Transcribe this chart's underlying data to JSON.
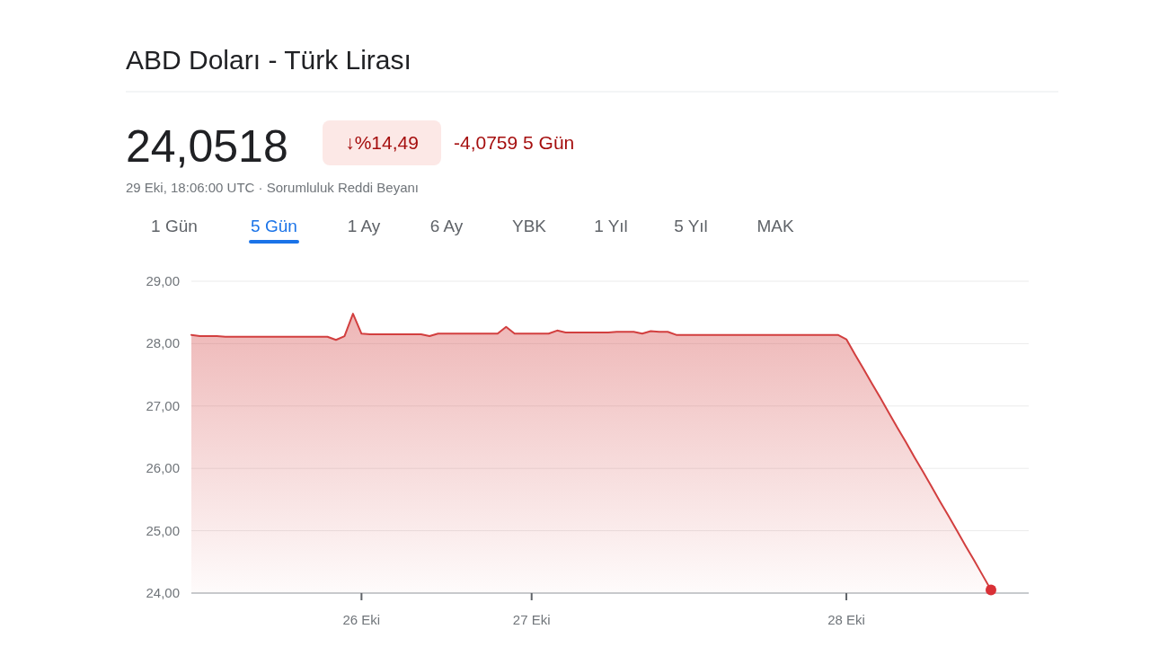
{
  "chart_data": {
    "type": "area",
    "title": "ABD Doları - Türk Lirası",
    "annotations": [
      "24,0518",
      "↓%14,49",
      "-4,0759 5 Gün",
      "29 Eki, 18:06:00 UTC · Sorumluluk Reddi Beyanı",
      "1 Gün",
      "5 Gün",
      "1 Ay",
      "6 Ay",
      "YBK",
      "1 Yıl",
      "5 Yıl",
      "MAK"
    ],
    "categories": [
      null,
      null,
      null,
      null,
      null,
      null,
      null,
      null,
      null,
      null,
      null,
      null,
      null,
      null,
      null,
      null,
      null,
      null,
      null,
      null,
      "26 Eki",
      null,
      null,
      null,
      null,
      null,
      null,
      null,
      null,
      null,
      null,
      null,
      null,
      null,
      null,
      null,
      null,
      null,
      null,
      null,
      "27 Eki",
      null,
      null,
      null,
      null,
      null,
      null,
      null,
      null,
      null,
      null,
      null,
      null,
      null,
      null,
      null,
      null,
      null,
      null,
      null,
      null,
      null,
      null,
      null,
      null,
      null,
      null,
      null,
      null,
      null,
      null,
      null,
      null,
      null,
      null,
      null,
      null,
      "28 Eki",
      null,
      null,
      null,
      null,
      null,
      null,
      null,
      null,
      null,
      null,
      null,
      null,
      null,
      null,
      null,
      null,
      null
    ],
    "ylim": [
      24,
      29
    ],
    "yticks": [
      {
        "value": 24,
        "label": "24,00"
      },
      {
        "value": 25,
        "label": "25,00"
      },
      {
        "value": 26,
        "label": "26,00"
      },
      {
        "value": 27,
        "label": "27,00"
      },
      {
        "value": 28,
        "label": "28,00"
      },
      {
        "value": 29,
        "label": "29,00"
      }
    ],
    "grid": "y",
    "marker": "none",
    "line_style": "solid",
    "series": [
      {
        "color": "#d23f3f",
        "values": [
          28.14,
          28.12,
          28.12,
          28.12,
          28.11,
          28.11,
          28.11,
          28.11,
          28.11,
          28.11,
          28.11,
          28.11,
          28.11,
          28.11,
          28.11,
          28.11,
          28.11,
          28.06,
          28.12,
          28.48,
          28.16,
          28.15,
          28.15,
          28.15,
          28.15,
          28.15,
          28.15,
          28.15,
          28.12,
          28.16,
          28.16,
          28.16,
          28.16,
          28.16,
          28.16,
          28.16,
          28.16,
          28.27,
          28.16,
          28.16,
          28.16,
          28.16,
          28.16,
          28.21,
          28.18,
          28.18,
          28.18,
          28.18,
          28.18,
          28.18,
          28.19,
          28.19,
          28.19,
          28.16,
          28.2,
          28.19,
          28.19,
          28.14,
          28.14,
          28.14,
          28.14,
          28.14,
          28.14,
          28.14,
          28.14,
          28.14,
          28.14,
          28.14,
          28.14,
          28.14,
          28.14,
          28.14,
          28.14,
          28.14,
          28.14,
          28.14,
          28.14,
          28.07,
          27.83,
          27.6,
          27.36,
          27.13,
          26.89,
          26.65,
          26.42,
          26.18,
          25.95,
          25.71,
          25.47,
          25.24,
          25.0,
          24.76,
          24.53,
          24.29,
          24.05
        ]
      },
      {
        "type": "scatter",
        "marker": "circle",
        "color": "#d93036",
        "values": [
          null,
          null,
          null,
          null,
          null,
          null,
          null,
          null,
          null,
          null,
          null,
          null,
          null,
          null,
          null,
          null,
          null,
          null,
          null,
          null,
          null,
          null,
          null,
          null,
          null,
          null,
          null,
          null,
          null,
          null,
          null,
          null,
          null,
          null,
          null,
          null,
          null,
          null,
          null,
          null,
          null,
          null,
          null,
          null,
          null,
          null,
          null,
          null,
          null,
          null,
          null,
          null,
          null,
          null,
          null,
          null,
          null,
          null,
          null,
          null,
          null,
          null,
          null,
          null,
          null,
          null,
          null,
          null,
          null,
          null,
          null,
          null,
          null,
          null,
          null,
          null,
          null,
          null,
          null,
          null,
          null,
          null,
          null,
          null,
          null,
          null,
          null,
          null,
          null,
          null,
          null,
          null,
          null,
          null,
          24.05
        ]
      }
    ]
  }
}
